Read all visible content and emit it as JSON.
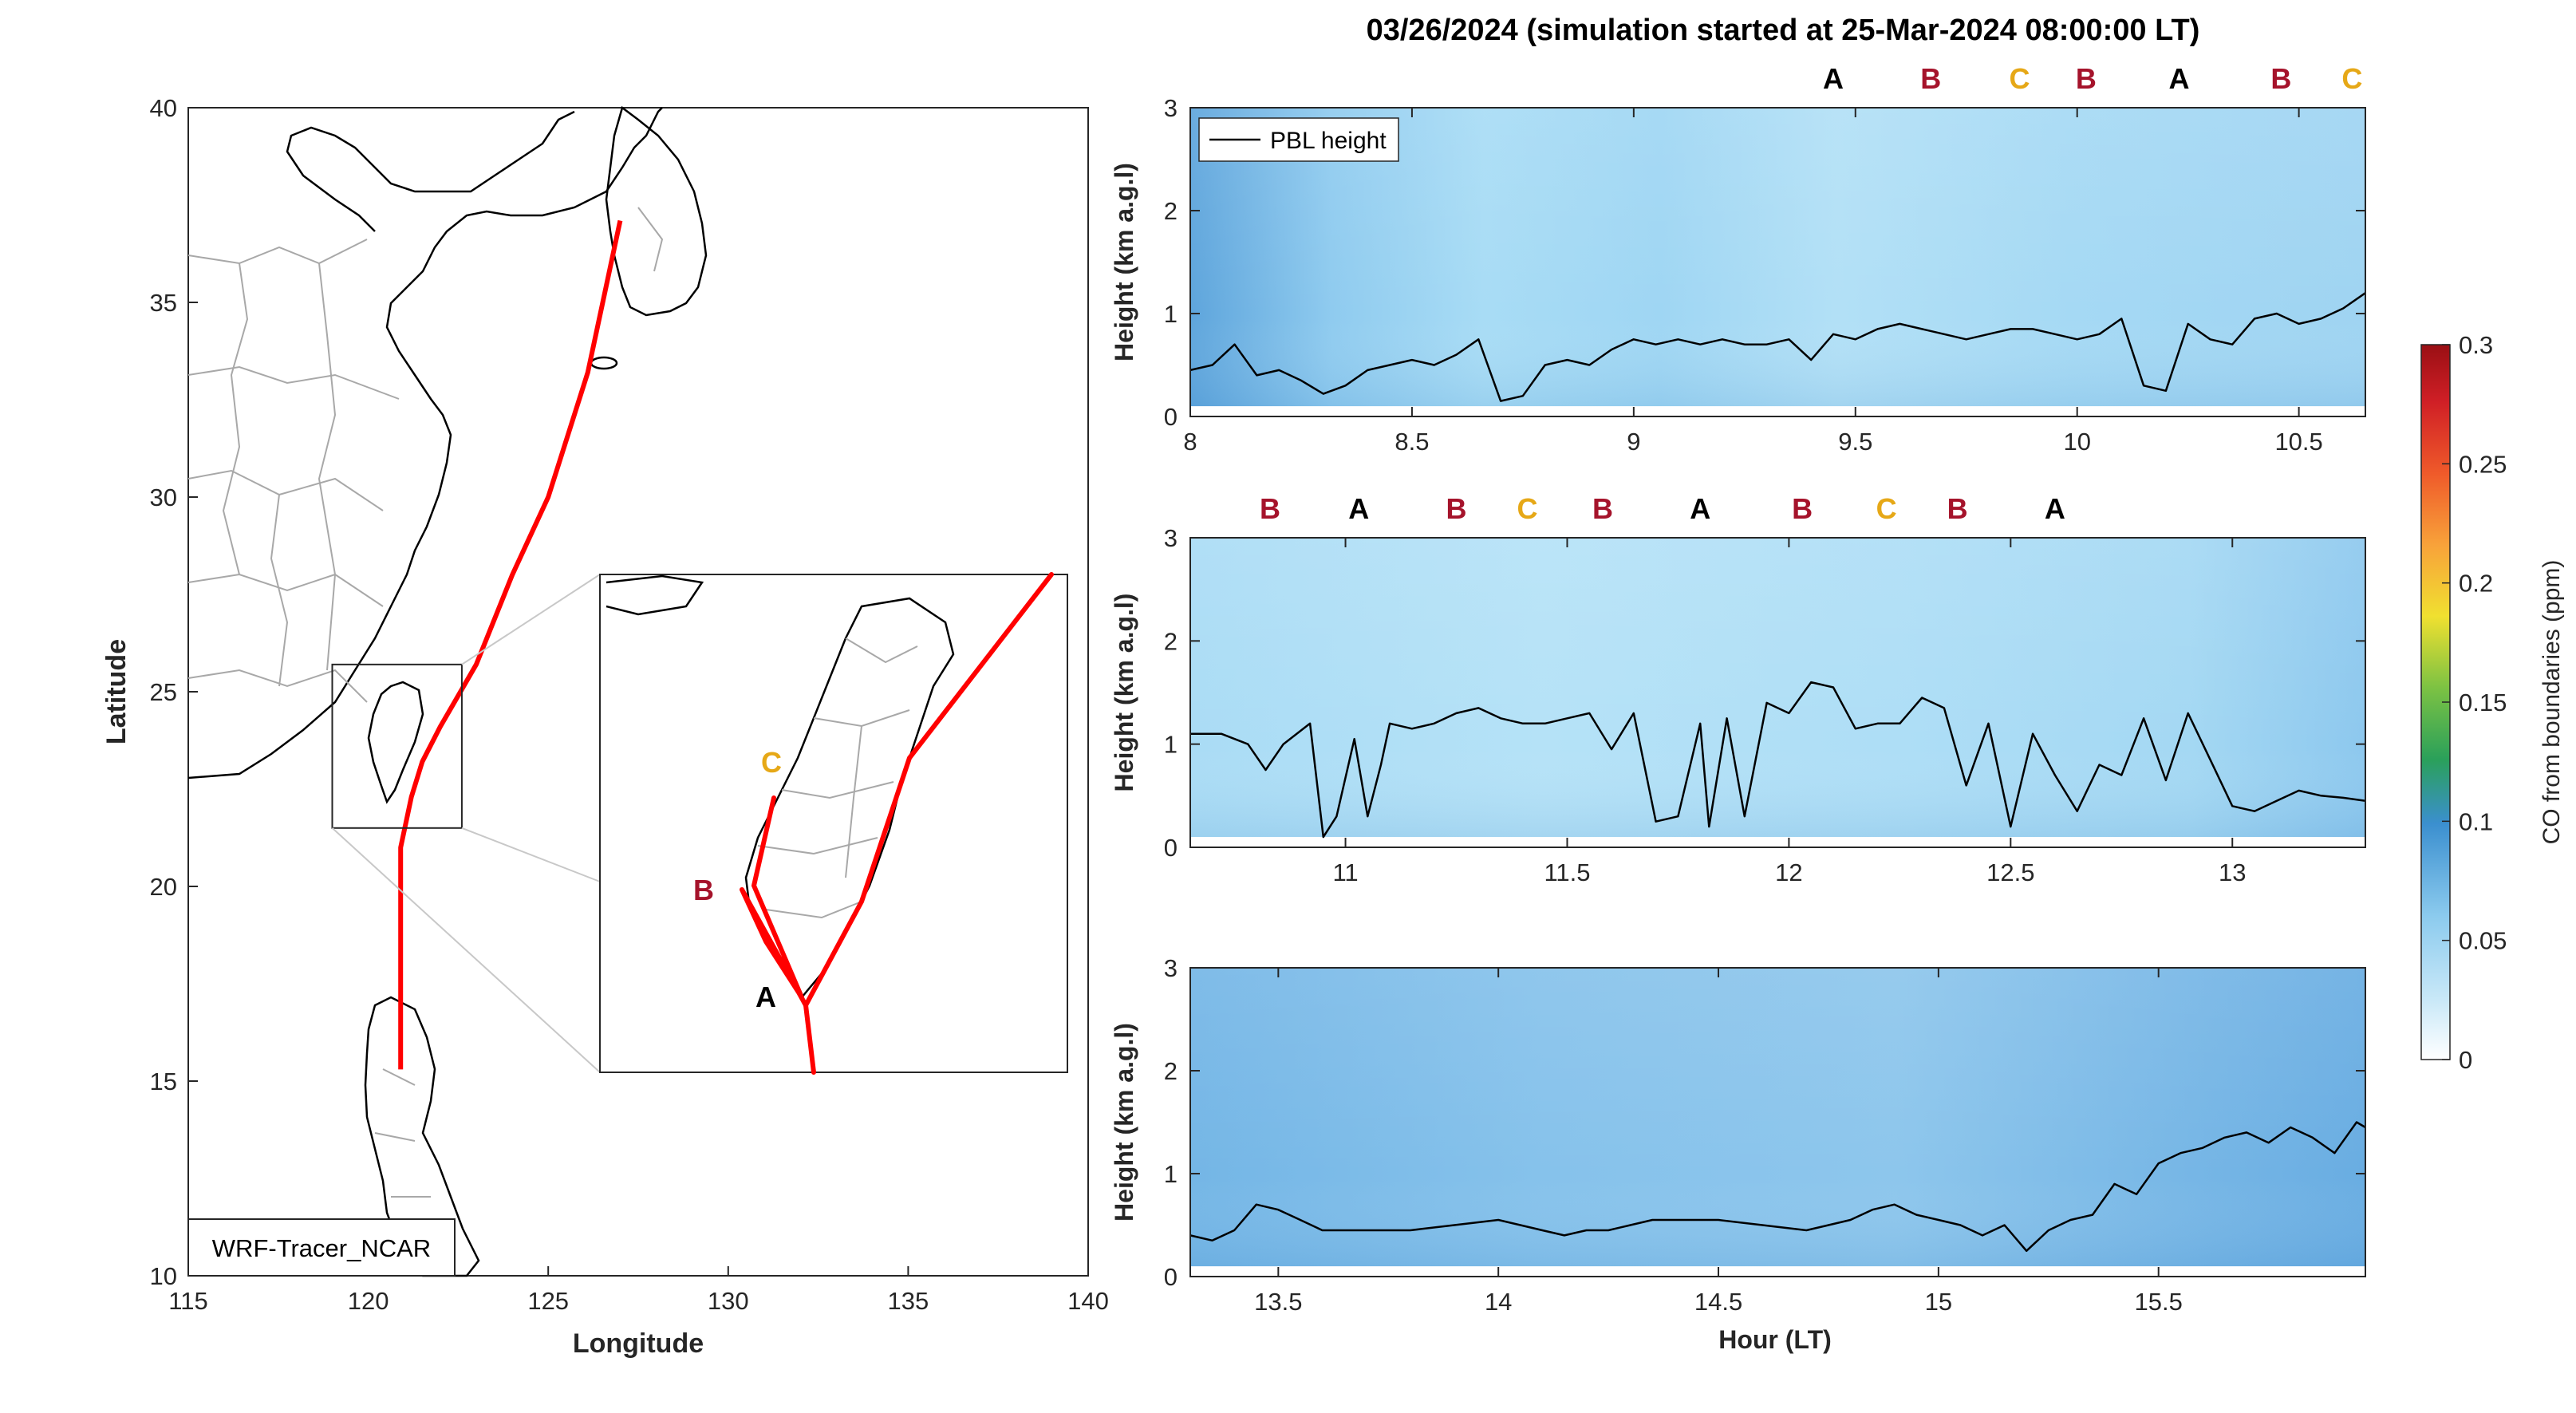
{
  "figure_title": "03/26/2024 (simulation started at 25-Mar-2024 08:00:00 LT)",
  "colors": {
    "track": "#ff0000",
    "marker_A": "#000000",
    "marker_B": "#a5132b",
    "marker_C": "#e6a817",
    "field_light": "#b4e0f6",
    "field_dark": "#4f97d2",
    "pbl_line": "#000000"
  },
  "map": {
    "xlabel": "Longitude",
    "ylabel": "Latitude",
    "xlim": [
      115,
      140
    ],
    "ylim": [
      10,
      40
    ],
    "xticks": [
      "115",
      "120",
      "125",
      "130",
      "135",
      "140"
    ],
    "yticks": [
      "10",
      "15",
      "20",
      "25",
      "30",
      "35",
      "40"
    ],
    "model_label": "WRF-Tracer_NCAR",
    "track": [
      [
        127.0,
        37.1
      ],
      [
        126.1,
        33.2
      ],
      [
        125.0,
        30.0
      ],
      [
        124.0,
        28.0
      ],
      [
        123.0,
        25.7
      ],
      [
        122.0,
        24.1
      ],
      [
        121.5,
        23.2
      ],
      [
        121.2,
        22.3
      ],
      [
        120.9,
        21.0
      ],
      [
        120.9,
        18.5
      ],
      [
        120.9,
        15.3
      ]
    ],
    "inset_box": {
      "lon": [
        119.0,
        122.6
      ],
      "lat": [
        21.5,
        25.7
      ]
    },
    "inset_labels": [
      {
        "text": "C",
        "color": "marker_C"
      },
      {
        "text": "B",
        "color": "marker_B"
      },
      {
        "text": "A",
        "color": "marker_A"
      }
    ]
  },
  "colorbar": {
    "label": "CO from boundaries (ppm)",
    "ticks": [
      "0",
      "0.05",
      "0.1",
      "0.15",
      "0.2",
      "0.25",
      "0.3"
    ],
    "range": [
      0,
      0.3
    ]
  },
  "chart_data": [
    {
      "type": "line",
      "legend": "PBL height",
      "ylabel": "Height (km a.g.l)",
      "xlim": [
        8.0,
        10.65
      ],
      "ylim": [
        0,
        3
      ],
      "xticks": [
        "8",
        "8.5",
        "9",
        "9.5",
        "10",
        "10.5"
      ],
      "yticks": [
        "0",
        "1",
        "2",
        "3"
      ],
      "markers": [
        {
          "text": "A",
          "hour": 9.45,
          "color": "marker_A"
        },
        {
          "text": "B",
          "hour": 9.67,
          "color": "marker_B"
        },
        {
          "text": "C",
          "hour": 9.87,
          "color": "marker_C"
        },
        {
          "text": "B",
          "hour": 10.02,
          "color": "marker_B"
        },
        {
          "text": "A",
          "hour": 10.23,
          "color": "marker_A"
        },
        {
          "text": "B",
          "hour": 10.46,
          "color": "marker_B"
        },
        {
          "text": "C",
          "hour": 10.62,
          "color": "marker_C"
        }
      ],
      "series": [
        {
          "name": "PBL height",
          "x": [
            8.0,
            8.05,
            8.1,
            8.15,
            8.2,
            8.25,
            8.3,
            8.35,
            8.4,
            8.45,
            8.5,
            8.55,
            8.6,
            8.65,
            8.7,
            8.75,
            8.8,
            8.85,
            8.9,
            8.95,
            9.0,
            9.05,
            9.1,
            9.15,
            9.2,
            9.25,
            9.3,
            9.35,
            9.4,
            9.45,
            9.5,
            9.55,
            9.6,
            9.65,
            9.7,
            9.75,
            9.8,
            9.85,
            9.9,
            9.95,
            10.0,
            10.05,
            10.1,
            10.15,
            10.2,
            10.25,
            10.3,
            10.35,
            10.4,
            10.45,
            10.5,
            10.55,
            10.6,
            10.65
          ],
          "values": [
            0.45,
            0.5,
            0.7,
            0.4,
            0.45,
            0.35,
            0.22,
            0.3,
            0.45,
            0.5,
            0.55,
            0.5,
            0.6,
            0.75,
            0.15,
            0.2,
            0.5,
            0.55,
            0.5,
            0.65,
            0.75,
            0.7,
            0.75,
            0.7,
            0.75,
            0.7,
            0.7,
            0.75,
            0.55,
            0.8,
            0.75,
            0.85,
            0.9,
            0.85,
            0.8,
            0.75,
            0.8,
            0.85,
            0.85,
            0.8,
            0.75,
            0.8,
            0.95,
            0.3,
            0.25,
            0.9,
            0.75,
            0.7,
            0.95,
            1.0,
            0.9,
            0.95,
            1.05,
            1.2
          ]
        }
      ]
    },
    {
      "type": "line",
      "legend": "",
      "ylabel": "Height (km a.g.l)",
      "xlim": [
        10.65,
        13.3
      ],
      "ylim": [
        0,
        3
      ],
      "xticks": [
        "11",
        "11.5",
        "12",
        "12.5",
        "13"
      ],
      "yticks": [
        "0",
        "1",
        "2",
        "3"
      ],
      "markers": [
        {
          "text": "B",
          "hour": 10.83,
          "color": "marker_B"
        },
        {
          "text": "A",
          "hour": 11.03,
          "color": "marker_A"
        },
        {
          "text": "B",
          "hour": 11.25,
          "color": "marker_B"
        },
        {
          "text": "C",
          "hour": 11.41,
          "color": "marker_C"
        },
        {
          "text": "B",
          "hour": 11.58,
          "color": "marker_B"
        },
        {
          "text": "A",
          "hour": 11.8,
          "color": "marker_A"
        },
        {
          "text": "B",
          "hour": 12.03,
          "color": "marker_B"
        },
        {
          "text": "C",
          "hour": 12.22,
          "color": "marker_C"
        },
        {
          "text": "B",
          "hour": 12.38,
          "color": "marker_B"
        },
        {
          "text": "A",
          "hour": 12.6,
          "color": "marker_A"
        }
      ],
      "series": [
        {
          "name": "PBL height",
          "x": [
            10.65,
            10.72,
            10.78,
            10.82,
            10.86,
            10.92,
            10.95,
            10.98,
            11.02,
            11.05,
            11.08,
            11.1,
            11.15,
            11.2,
            11.25,
            11.3,
            11.35,
            11.4,
            11.45,
            11.5,
            11.55,
            11.6,
            11.65,
            11.7,
            11.75,
            11.8,
            11.82,
            11.86,
            11.9,
            11.95,
            12.0,
            12.05,
            12.1,
            12.15,
            12.2,
            12.25,
            12.3,
            12.35,
            12.4,
            12.45,
            12.5,
            12.55,
            12.6,
            12.65,
            12.7,
            12.75,
            12.8,
            12.85,
            12.9,
            12.95,
            13.0,
            13.05,
            13.1,
            13.15,
            13.2,
            13.25,
            13.3
          ],
          "values": [
            1.1,
            1.1,
            1.0,
            0.75,
            1.0,
            1.2,
            0.1,
            0.3,
            1.05,
            0.3,
            0.8,
            1.2,
            1.15,
            1.2,
            1.3,
            1.35,
            1.25,
            1.2,
            1.2,
            1.25,
            1.3,
            0.95,
            1.3,
            0.25,
            0.3,
            1.2,
            0.2,
            1.25,
            0.3,
            1.4,
            1.3,
            1.6,
            1.55,
            1.15,
            1.2,
            1.2,
            1.45,
            1.35,
            0.6,
            1.2,
            0.2,
            1.1,
            0.7,
            0.35,
            0.8,
            0.7,
            1.25,
            0.65,
            1.3,
            0.85,
            0.4,
            0.35,
            0.45,
            0.55,
            0.5,
            0.48,
            0.45
          ]
        }
      ]
    },
    {
      "type": "line",
      "legend": "",
      "ylabel": "Height (km a.g.l)",
      "xlabel": "Hour (LT)",
      "xlim": [
        13.3,
        15.97
      ],
      "ylim": [
        0,
        3
      ],
      "xticks": [
        "13.5",
        "14",
        "14.5",
        "15",
        "15.5"
      ],
      "yticks": [
        "0",
        "1",
        "2",
        "3"
      ],
      "markers": [],
      "series": [
        {
          "name": "PBL height",
          "x": [
            13.3,
            13.35,
            13.4,
            13.45,
            13.5,
            13.55,
            13.6,
            13.7,
            13.8,
            13.9,
            14.0,
            14.05,
            14.1,
            14.15,
            14.2,
            14.25,
            14.3,
            14.35,
            14.4,
            14.5,
            14.6,
            14.7,
            14.8,
            14.85,
            14.9,
            14.95,
            15.0,
            15.05,
            15.1,
            15.15,
            15.2,
            15.25,
            15.3,
            15.35,
            15.4,
            15.45,
            15.5,
            15.55,
            15.6,
            15.65,
            15.7,
            15.75,
            15.8,
            15.85,
            15.9,
            15.95,
            15.97
          ],
          "values": [
            0.4,
            0.35,
            0.45,
            0.7,
            0.65,
            0.55,
            0.45,
            0.45,
            0.45,
            0.5,
            0.55,
            0.5,
            0.45,
            0.4,
            0.45,
            0.45,
            0.5,
            0.55,
            0.55,
            0.55,
            0.5,
            0.45,
            0.55,
            0.65,
            0.7,
            0.6,
            0.55,
            0.5,
            0.4,
            0.5,
            0.25,
            0.45,
            0.55,
            0.6,
            0.9,
            0.8,
            1.1,
            1.2,
            1.25,
            1.35,
            1.4,
            1.3,
            1.45,
            1.35,
            1.2,
            1.5,
            1.45
          ]
        }
      ]
    }
  ]
}
